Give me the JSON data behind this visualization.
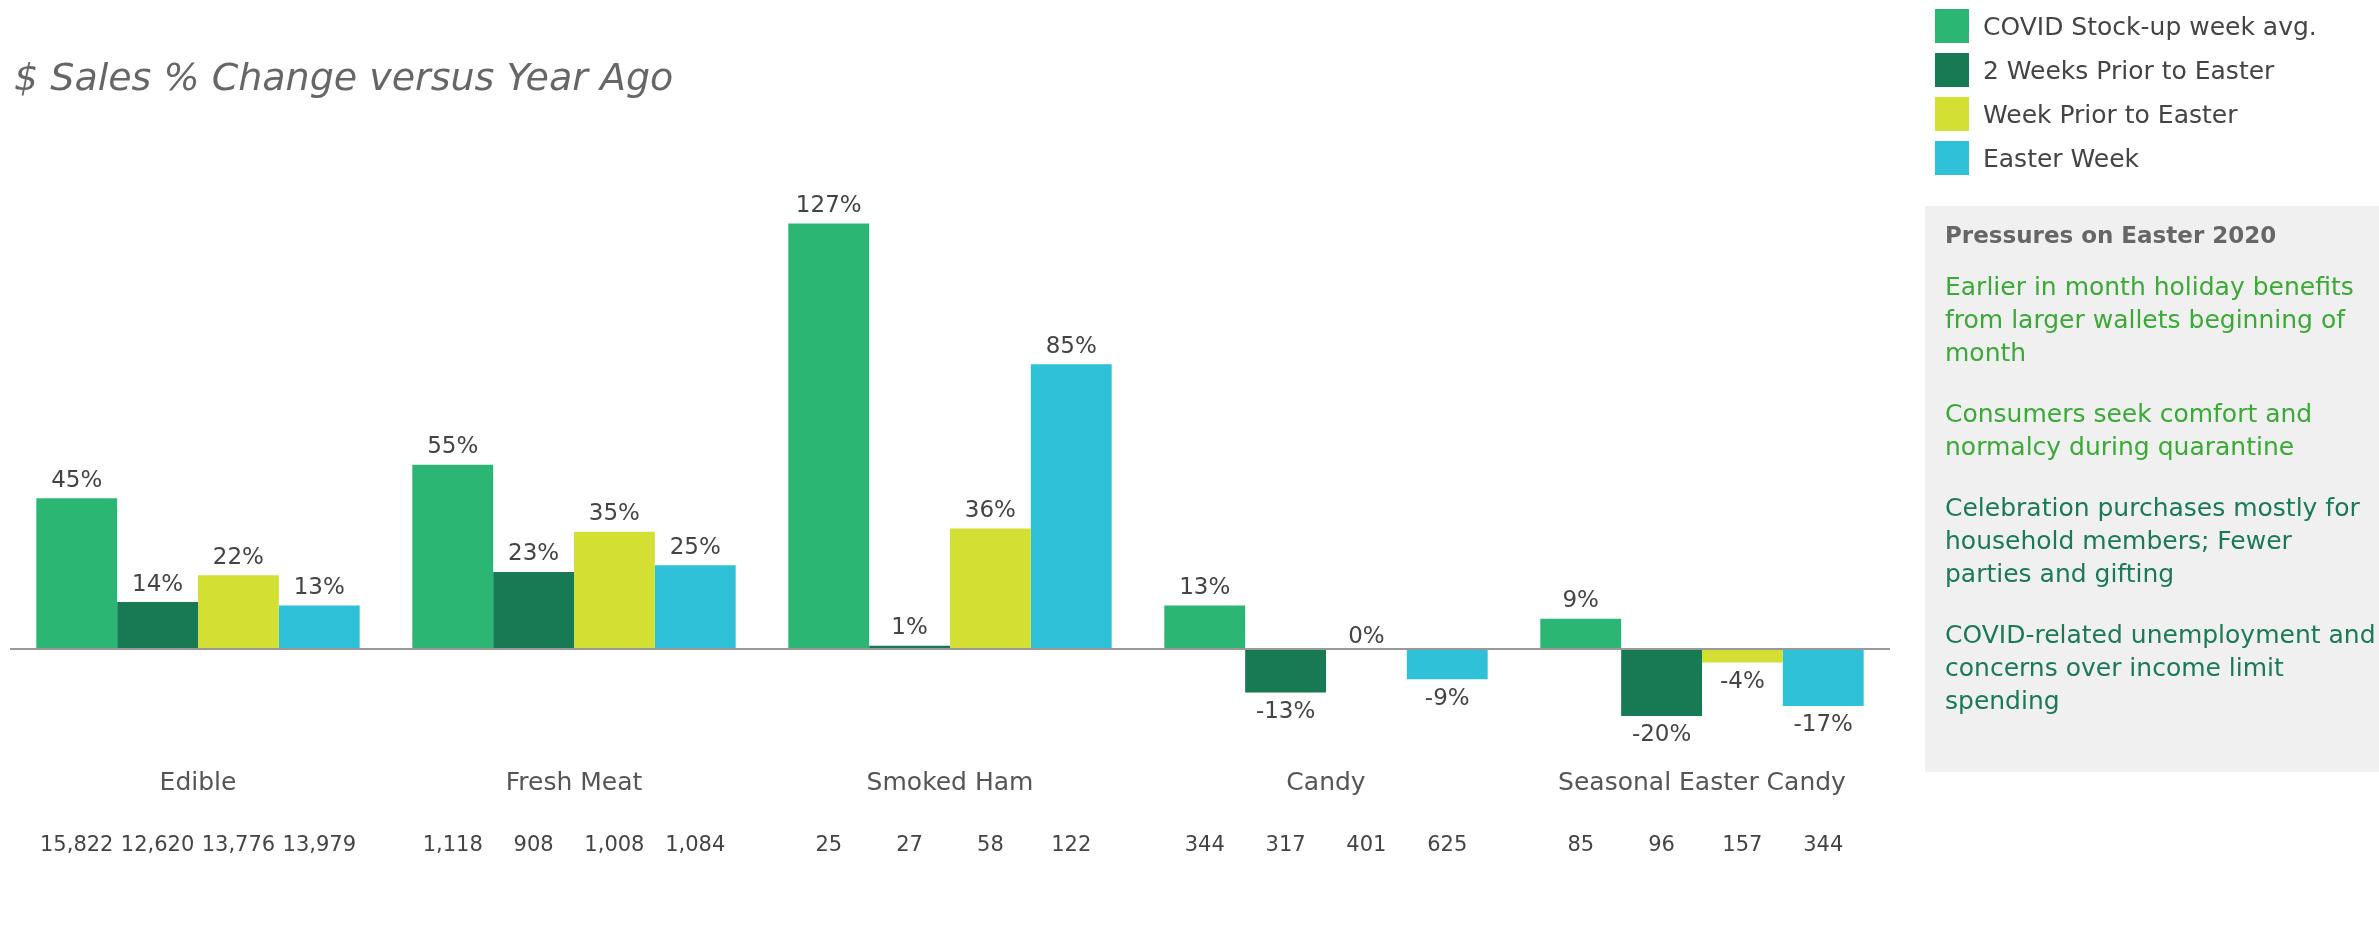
{
  "chart_data": [
    {
      "type": "bar",
      "title": "$ Sales % Change versus Year Ago",
      "categories": [
        "Edible",
        "Fresh Meat",
        "Smoked Ham",
        "Candy",
        "Seasonal Easter Candy"
      ],
      "series": [
        {
          "name": "COVID Stock-up week avg.",
          "color": "#2bb673",
          "values": [
            45,
            55,
            127,
            13,
            9
          ],
          "value_labels": [
            "45%",
            "55%",
            "127%",
            "13%",
            "9%"
          ]
        },
        {
          "name": "2 Weeks Prior to Easter",
          "color": "#187a55",
          "values": [
            14,
            23,
            1,
            -13,
            -20
          ],
          "value_labels": [
            "14%",
            "23%",
            "1%",
            "-13%",
            "-20%"
          ]
        },
        {
          "name": "Week Prior to Easter",
          "color": "#d4df33",
          "values": [
            22,
            35,
            36,
            0,
            -4
          ],
          "value_labels": [
            "22%",
            "35%",
            "36%",
            "0%",
            "-4%"
          ]
        },
        {
          "name": "Easter Week",
          "color": "#2fc1d8",
          "values": [
            13,
            25,
            85,
            -9,
            -17
          ],
          "value_labels": [
            "13%",
            "25%",
            "85%",
            "-9%",
            "-17%"
          ]
        }
      ],
      "annotations": [
        "15,822",
        "12,620",
        "13,776",
        "13,979",
        "1,118",
        "908",
        "1,008",
        "1,084",
        "25",
        "27",
        "58",
        "122",
        "344",
        "317",
        "401",
        "625",
        "85",
        "96",
        "157",
        "344"
      ],
      "legend": "top right"
    },
    {
      "type": "other",
      "title": "Pressures on Easter 2020",
      "annotations": [
        "Earlier in month holiday benefits from larger wallets beginning of month",
        "Consumers seek comfort and normalcy during quarantine",
        "Celebration purchases mostly for household members; Fewer parties and gifting",
        "COVID-related unemployment and concerns over income limit spending"
      ]
    }
  ]
}
